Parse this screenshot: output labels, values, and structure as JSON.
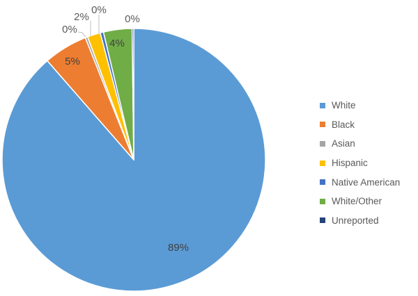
{
  "chart_data": {
    "type": "pie",
    "title": "",
    "start_angle_deg": 0,
    "direction": "clockwise",
    "categories": [
      "White",
      "Black",
      "Asian",
      "Hispanic",
      "Native American",
      "White/Other",
      "Unreported"
    ],
    "values": [
      88.6,
      5.4,
      0.3,
      1.6,
      0.4,
      3.5,
      0.2
    ],
    "data_labels": [
      "89%",
      "5%",
      "0%",
      "2%",
      "0%",
      "4%",
      "0%"
    ],
    "colors": [
      "#5B9BD5",
      "#ED7D31",
      "#A5A5A5",
      "#FFC000",
      "#4472C4",
      "#70AD47",
      "#264478"
    ],
    "legend_position": "right"
  },
  "legend": {
    "items": [
      {
        "label": "White",
        "color": "#5B9BD5"
      },
      {
        "label": "Black",
        "color": "#ED7D31"
      },
      {
        "label": "Asian",
        "color": "#A5A5A5"
      },
      {
        "label": "Hispanic",
        "color": "#FFC000"
      },
      {
        "label": "Native American",
        "color": "#4472C4"
      },
      {
        "label": "White/Other",
        "color": "#70AD47"
      },
      {
        "label": "Unreported",
        "color": "#264478"
      }
    ]
  },
  "labels": {
    "white": "89%",
    "black": "5%",
    "asian": "0%",
    "hispanic": "2%",
    "native_american": "0%",
    "white_other": "4%",
    "unreported": "0%"
  }
}
